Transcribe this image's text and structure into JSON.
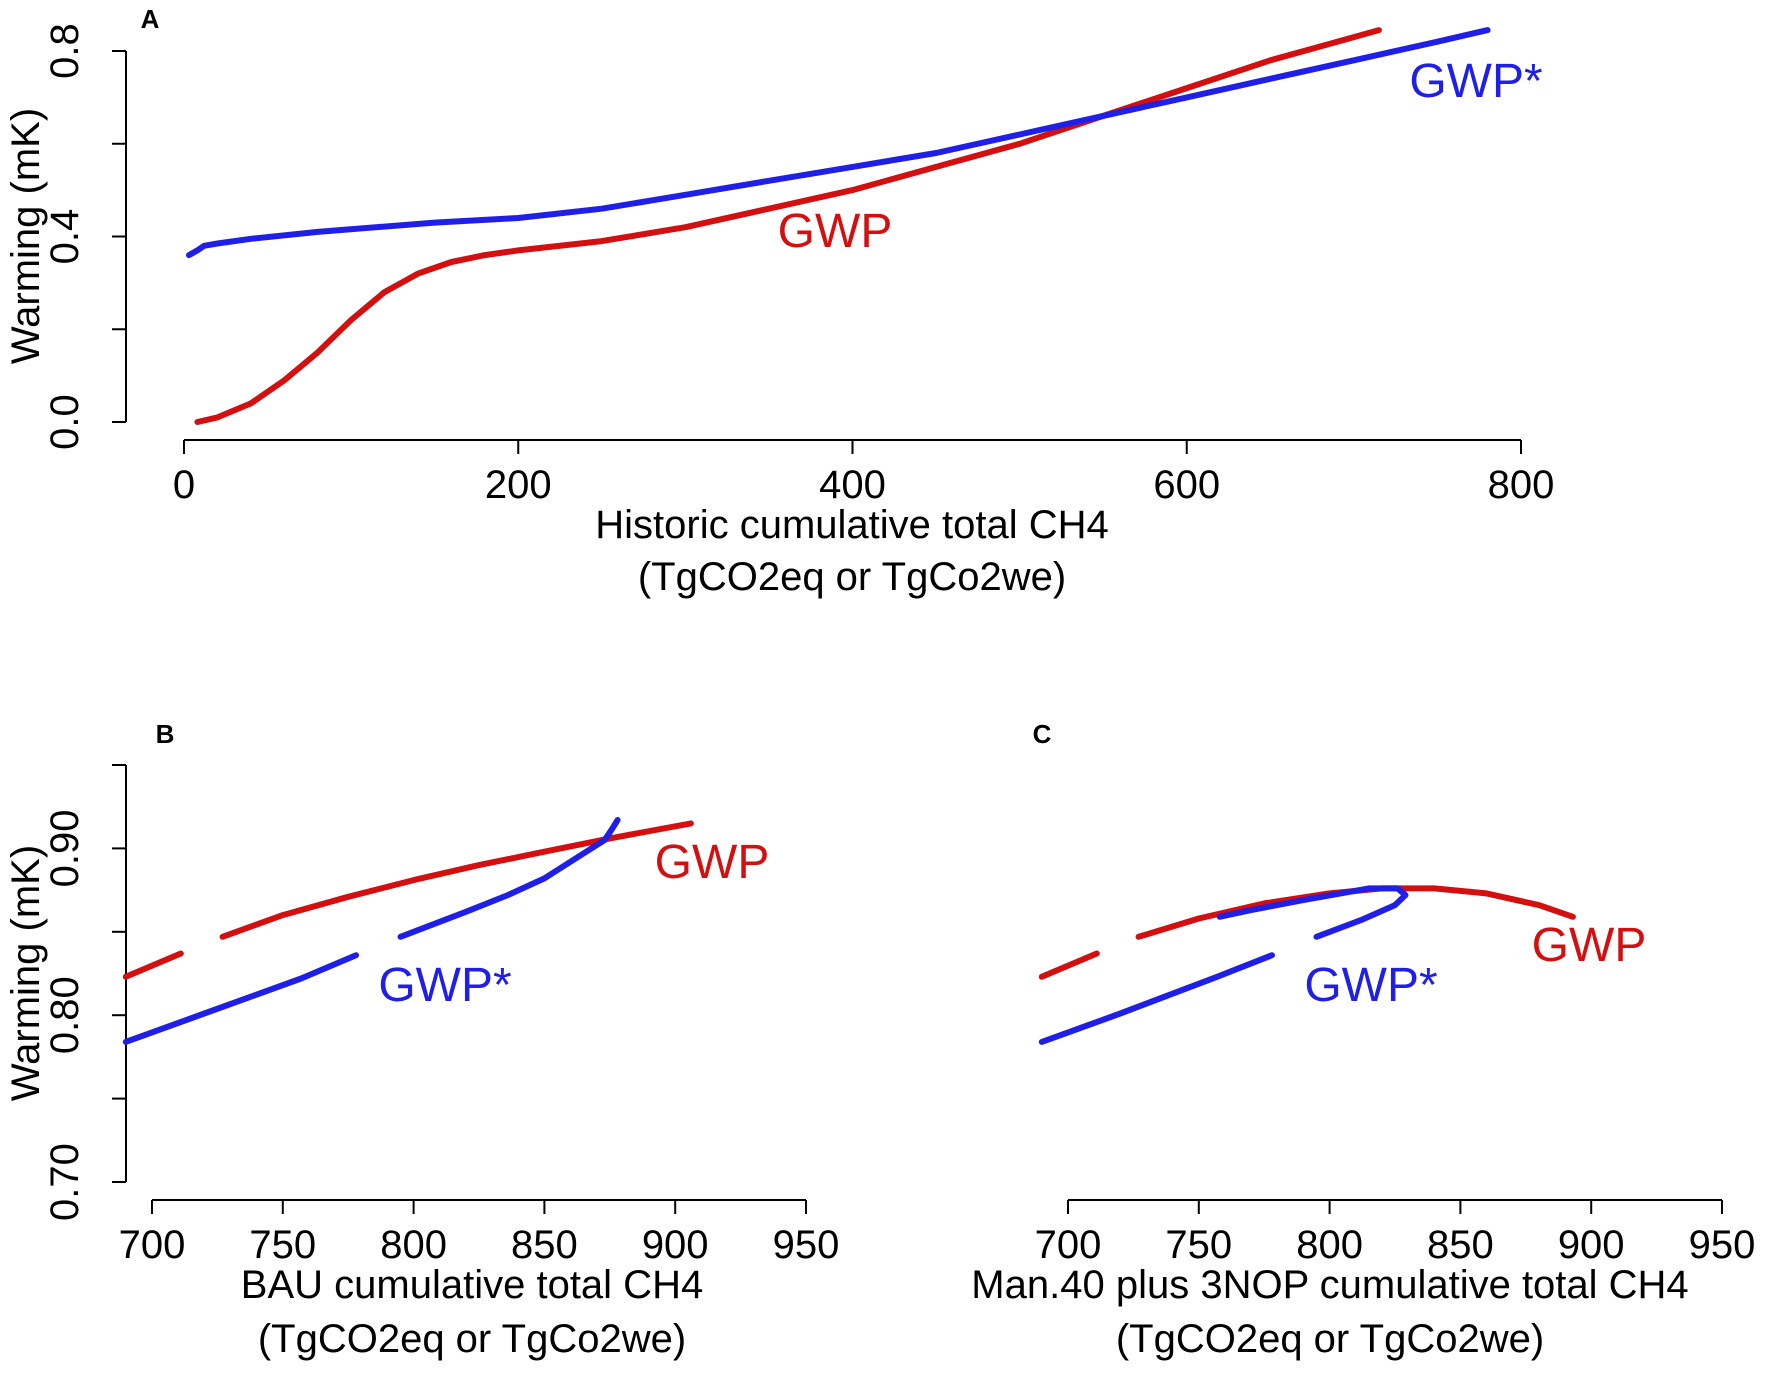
{
  "colors": {
    "gwp": "#d40f0f",
    "gwp_star": "#1f1fe8",
    "axis": "#000000"
  },
  "chart_data": [
    {
      "panel": "A",
      "type": "line",
      "xlabel": "Historic cumulative total CH4",
      "xlabel2": "(TgCO2eq or TgCo2we)",
      "ylabel": "Warming (mK)",
      "xlim": [
        0,
        800
      ],
      "ylim": [
        0.0,
        0.8
      ],
      "xticks": [
        0,
        200,
        400,
        600,
        800
      ],
      "yticks": [
        0.0,
        0.2,
        0.4,
        0.6,
        0.8
      ],
      "ytick_labels": [
        "0.0",
        "",
        "0.4",
        "",
        "0.8"
      ],
      "series": [
        {
          "name": "GWP",
          "label": "GWP",
          "color": "#d40f0f",
          "segments": [
            [
              [
                8,
                0.0
              ],
              [
                20,
                0.01
              ],
              [
                40,
                0.04
              ],
              [
                60,
                0.09
              ],
              [
                80,
                0.15
              ],
              [
                100,
                0.22
              ],
              [
                120,
                0.28
              ],
              [
                140,
                0.32
              ],
              [
                160,
                0.345
              ],
              [
                180,
                0.36
              ],
              [
                200,
                0.37
              ],
              [
                250,
                0.39
              ],
              [
                300,
                0.42
              ],
              [
                350,
                0.46
              ],
              [
                400,
                0.5
              ],
              [
                450,
                0.55
              ],
              [
                500,
                0.6
              ],
              [
                550,
                0.66
              ],
              [
                600,
                0.72
              ],
              [
                650,
                0.78
              ],
              [
                700,
                0.83
              ],
              [
                715,
                0.845
              ]
            ]
          ]
        },
        {
          "name": "GWP*",
          "label": "GWP*",
          "color": "#1f1fe8",
          "segments": [
            [
              [
                3,
                0.36
              ],
              [
                8,
                0.37
              ],
              [
                12,
                0.38
              ],
              [
                20,
                0.385
              ],
              [
                40,
                0.395
              ],
              [
                80,
                0.41
              ],
              [
                150,
                0.43
              ],
              [
                200,
                0.44
              ],
              [
                250,
                0.46
              ],
              [
                300,
                0.49
              ],
              [
                350,
                0.52
              ],
              [
                400,
                0.55
              ],
              [
                450,
                0.58
              ],
              [
                500,
                0.62
              ],
              [
                550,
                0.66
              ],
              [
                600,
                0.7
              ],
              [
                650,
                0.74
              ],
              [
                700,
                0.78
              ],
              [
                750,
                0.82
              ],
              [
                780,
                0.845
              ]
            ]
          ]
        }
      ]
    },
    {
      "panel": "B",
      "type": "line",
      "xlabel": "BAU cumulative total CH4",
      "xlabel2": "(TgCO2eq or TgCo2we)",
      "ylabel": "Warming (mK)",
      "xlim": [
        700,
        950
      ],
      "ylim": [
        0.7,
        0.95
      ],
      "xticks": [
        700,
        750,
        800,
        850,
        900,
        950
      ],
      "yticks": [
        0.7,
        0.75,
        0.8,
        0.85,
        0.9,
        0.95
      ],
      "ytick_labels": [
        "0.70",
        "",
        "0.80",
        "",
        "0.90",
        ""
      ],
      "series": [
        {
          "name": "GWP",
          "label": "GWP",
          "color": "#d40f0f",
          "segments": [
            [
              [
                690,
                0.823
              ],
              [
                711,
                0.837
              ]
            ],
            [
              [
                727,
                0.847
              ],
              [
                750,
                0.86
              ],
              [
                775,
                0.871
              ],
              [
                800,
                0.881
              ],
              [
                825,
                0.89
              ],
              [
                850,
                0.898
              ],
              [
                875,
                0.906
              ],
              [
                906,
                0.915
              ]
            ]
          ]
        },
        {
          "name": "GWP*",
          "label": "GWP*",
          "color": "#1f1fe8",
          "segments": [
            [
              [
                690,
                0.784
              ],
              [
                720,
                0.801
              ],
              [
                757,
                0.822
              ],
              [
                778,
                0.836
              ]
            ],
            [
              [
                795,
                0.847
              ],
              [
                820,
                0.862
              ],
              [
                836,
                0.872
              ],
              [
                850,
                0.882
              ],
              [
                865,
                0.897
              ],
              [
                873,
                0.905
              ],
              [
                876,
                0.912
              ],
              [
                878,
                0.917
              ]
            ]
          ]
        }
      ]
    },
    {
      "panel": "C",
      "type": "line",
      "xlabel": "Man.40 plus 3NOP cumulative total CH4",
      "xlabel2": "(TgCO2eq or TgCo2we)",
      "ylabel": "",
      "xlim": [
        700,
        950
      ],
      "ylim": [
        0.7,
        0.95
      ],
      "xticks": [
        700,
        750,
        800,
        850,
        900,
        950
      ],
      "yticks": [],
      "ytick_labels": [],
      "series": [
        {
          "name": "GWP",
          "label": "GWP",
          "color": "#d40f0f",
          "segments": [
            [
              [
                690,
                0.823
              ],
              [
                711,
                0.837
              ]
            ],
            [
              [
                727,
                0.847
              ],
              [
                750,
                0.858
              ],
              [
                775,
                0.867
              ],
              [
                800,
                0.873
              ],
              [
                820,
                0.876
              ],
              [
                840,
                0.876
              ],
              [
                860,
                0.873
              ],
              [
                880,
                0.866
              ],
              [
                893,
                0.859
              ]
            ]
          ]
        },
        {
          "name": "GWP*",
          "label": "GWP*",
          "color": "#1f1fe8",
          "segments": [
            [
              [
                690,
                0.784
              ],
              [
                720,
                0.801
              ],
              [
                757,
                0.823
              ],
              [
                778,
                0.836
              ]
            ],
            [
              [
                795,
                0.847
              ],
              [
                812,
                0.857
              ],
              [
                825,
                0.866
              ],
              [
                829,
                0.872
              ],
              [
                826,
                0.876
              ],
              [
                815,
                0.876
              ],
              [
                790,
                0.869
              ],
              [
                770,
                0.863
              ],
              [
                758,
                0.859
              ]
            ]
          ]
        }
      ]
    }
  ]
}
